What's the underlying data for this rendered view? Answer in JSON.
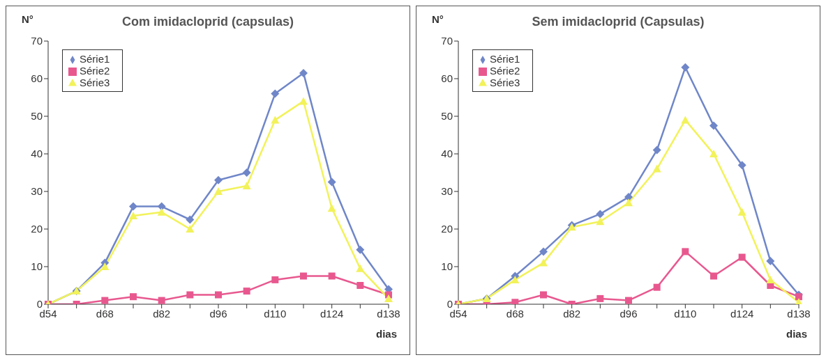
{
  "chart_data": [
    {
      "type": "line",
      "title": "Com imidacloprid (capsulas)",
      "ylabel": "N°",
      "xlabel": "dias",
      "categories": [
        "d54",
        null,
        "d68",
        null,
        "d82",
        null,
        "d96",
        null,
        "d110",
        null,
        "d124",
        null,
        "d138"
      ],
      "ylim": [
        0,
        70
      ],
      "yticks": [
        0,
        10,
        20,
        30,
        40,
        50,
        60,
        70
      ],
      "grid": false,
      "legend": "top left",
      "line_style": "solid",
      "series": [
        {
          "name": "Série1",
          "color": "#6f86c8",
          "marker": "diamond",
          "values": [
            0,
            3.5,
            11,
            26,
            26,
            22.5,
            33,
            35,
            56,
            61.5,
            32.5,
            14.5,
            4
          ]
        },
        {
          "name": "Série2",
          "color": "#e8588f",
          "marker": "square",
          "values": [
            0,
            0,
            1,
            2,
            1,
            2.5,
            2.5,
            3.5,
            6.5,
            7.5,
            7.5,
            5,
            2.5
          ]
        },
        {
          "name": "Série3",
          "color": "#f2f25a",
          "marker": "triangle",
          "values": [
            0,
            3.5,
            10,
            23.5,
            24.5,
            20,
            30,
            31.5,
            49,
            54,
            25.5,
            9.5,
            1.5
          ]
        }
      ]
    },
    {
      "type": "line",
      "title": "Sem imidacloprid (Capsulas)",
      "ylabel": "N°",
      "xlabel": "dias",
      "categories": [
        "d54",
        null,
        "d68",
        null,
        "d82",
        null,
        "d96",
        null,
        "d110",
        null,
        "d124",
        null,
        "d138"
      ],
      "ylim": [
        0,
        70
      ],
      "yticks": [
        0,
        10,
        20,
        30,
        40,
        50,
        60,
        70
      ],
      "grid": false,
      "legend": "top left",
      "line_style": "solid",
      "series": [
        {
          "name": "Série1",
          "color": "#6f86c8",
          "marker": "diamond",
          "values": [
            0,
            1.5,
            7.5,
            14,
            21,
            24,
            28.5,
            41,
            63,
            47.5,
            37,
            11.5,
            2.5
          ]
        },
        {
          "name": "Série2",
          "color": "#e8588f",
          "marker": "square",
          "values": [
            0,
            0,
            0.5,
            2.5,
            0,
            1.5,
            1,
            4.5,
            14,
            7.5,
            12.5,
            5,
            2
          ]
        },
        {
          "name": "Série3",
          "color": "#f2f25a",
          "marker": "triangle",
          "values": [
            0,
            1.5,
            6.5,
            11,
            20.5,
            22,
            27,
            36,
            49,
            40,
            24.5,
            6.5,
            0.5
          ]
        }
      ]
    }
  ]
}
